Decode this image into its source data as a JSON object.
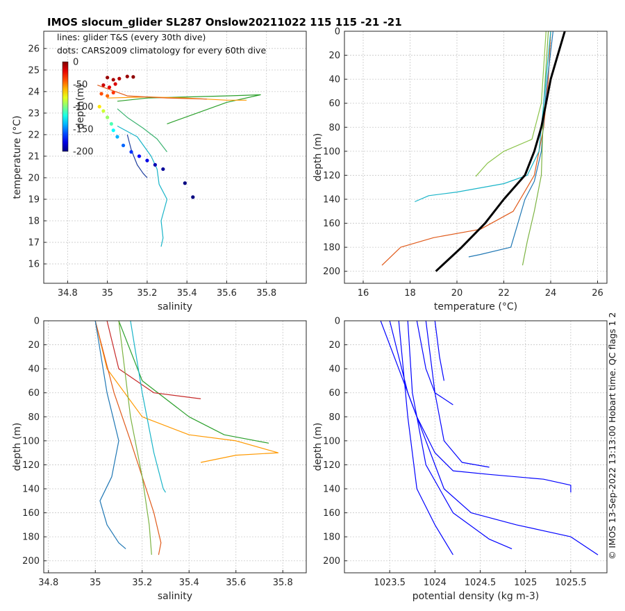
{
  "figure": {
    "title": "IMOS slocum_glider SL287 Onslow20211022 115  115  -21  -21",
    "side_note": "© IMOS 13-Sep-2022 13:13:00 Hobart time. QC flags 1  2"
  },
  "chart_data": [
    {
      "type": "scatter",
      "panel": "ts",
      "xlabel": "salinity",
      "ylabel": "temperature (°C)",
      "xlim": [
        34.68,
        36.0
      ],
      "ylim": [
        15.1,
        26.8
      ],
      "xticks": [
        34.8,
        35,
        35.2,
        35.4,
        35.6,
        35.8
      ],
      "yticks": [
        16,
        17,
        18,
        19,
        20,
        21,
        22,
        23,
        24,
        25,
        26
      ],
      "grid": true,
      "legend_lines": [
        "lines: glider T&S (every 30th dive)",
        "dots: CARS2009 climatology for every 60th dive"
      ],
      "colorbar": {
        "label": "depth(m)",
        "range": [
          -200,
          0
        ],
        "ticks": [
          0,
          -50,
          -100,
          -150,
          -200
        ],
        "tick_labels": [
          "0",
          "-50",
          "-100",
          "-150",
          "-200"
        ],
        "colormap": "jet"
      },
      "climatology_points": [
        {
          "s": 35.0,
          "t": 24.65,
          "depth": -5
        },
        {
          "s": 35.03,
          "t": 24.55,
          "depth": -8
        },
        {
          "s": 35.06,
          "t": 24.6,
          "depth": -10
        },
        {
          "s": 35.1,
          "t": 24.7,
          "depth": -5
        },
        {
          "s": 35.13,
          "t": 24.68,
          "depth": -3
        },
        {
          "s": 34.98,
          "t": 24.3,
          "depth": -15
        },
        {
          "s": 35.01,
          "t": 24.2,
          "depth": -20
        },
        {
          "s": 35.04,
          "t": 24.35,
          "depth": -18
        },
        {
          "s": 34.97,
          "t": 23.9,
          "depth": -40
        },
        {
          "s": 35.0,
          "t": 23.8,
          "depth": -45
        },
        {
          "s": 35.03,
          "t": 23.95,
          "depth": -35
        },
        {
          "s": 34.96,
          "t": 23.3,
          "depth": -70
        },
        {
          "s": 34.98,
          "t": 23.1,
          "depth": -85
        },
        {
          "s": 35.0,
          "t": 22.8,
          "depth": -95
        },
        {
          "s": 35.02,
          "t": 22.5,
          "depth": -110
        },
        {
          "s": 35.03,
          "t": 22.2,
          "depth": -125
        },
        {
          "s": 35.05,
          "t": 21.9,
          "depth": -140
        },
        {
          "s": 35.08,
          "t": 21.5,
          "depth": -155
        },
        {
          "s": 35.12,
          "t": 21.2,
          "depth": -165
        },
        {
          "s": 35.16,
          "t": 21.0,
          "depth": -175
        },
        {
          "s": 35.2,
          "t": 20.8,
          "depth": -180
        },
        {
          "s": 35.24,
          "t": 20.6,
          "depth": -190
        },
        {
          "s": 35.28,
          "t": 20.4,
          "depth": -195
        },
        {
          "s": 35.39,
          "t": 19.75,
          "depth": -200
        },
        {
          "s": 35.43,
          "t": 19.1,
          "depth": -200
        }
      ],
      "glider_lines": [
        {
          "color": "#2ca02c",
          "points": [
            [
              35.05,
              23.55
            ],
            [
              35.2,
              23.7
            ],
            [
              35.4,
              23.75
            ],
            [
              35.6,
              23.8
            ],
            [
              35.77,
              23.85
            ],
            [
              35.6,
              23.5
            ],
            [
              35.45,
              23.0
            ],
            [
              35.3,
              22.5
            ]
          ]
        },
        {
          "color": "#ff9900",
          "points": [
            [
              35.0,
              23.7
            ],
            [
              35.2,
              23.75
            ],
            [
              35.4,
              23.7
            ],
            [
              35.6,
              23.6
            ],
            [
              35.7,
              23.6
            ]
          ]
        },
        {
          "color": "#e05a1a",
          "points": [
            [
              34.95,
              24.3
            ],
            [
              35.1,
              23.8
            ],
            [
              35.3,
              23.7
            ],
            [
              35.5,
              23.65
            ]
          ]
        },
        {
          "color": "#18b4c8",
          "points": [
            [
              35.05,
              22.4
            ],
            [
              35.15,
              21.9
            ],
            [
              35.22,
              21.0
            ],
            [
              35.25,
              20.4
            ],
            [
              35.26,
              19.7
            ],
            [
              35.3,
              19.0
            ],
            [
              35.27,
              18.0
            ],
            [
              35.28,
              17.2
            ],
            [
              35.27,
              16.8
            ]
          ]
        },
        {
          "color": "#1f3f9e",
          "points": [
            [
              35.1,
              22.0
            ],
            [
              35.12,
              21.3
            ],
            [
              35.15,
              20.6
            ],
            [
              35.18,
              20.2
            ],
            [
              35.2,
              20.0
            ]
          ]
        },
        {
          "color": "#3cb371",
          "points": [
            [
              35.05,
              23.2
            ],
            [
              35.1,
              22.8
            ],
            [
              35.18,
              22.3
            ],
            [
              35.25,
              21.8
            ],
            [
              35.3,
              21.2
            ]
          ]
        }
      ]
    },
    {
      "type": "line",
      "panel": "temperature",
      "xlabel": "temperature (°C)",
      "ylabel": "depth (m)",
      "xlim": [
        15.2,
        26.4
      ],
      "ylim": [
        0,
        210
      ],
      "y_reversed": true,
      "xticks": [
        16,
        18,
        20,
        22,
        24,
        26
      ],
      "yticks": [
        0,
        20,
        40,
        60,
        80,
        100,
        120,
        140,
        160,
        180,
        200
      ],
      "grid": true,
      "climatology_profile": [
        [
          24.6,
          0
        ],
        [
          24.3,
          20
        ],
        [
          24.0,
          40
        ],
        [
          23.8,
          60
        ],
        [
          23.6,
          80
        ],
        [
          23.3,
          100
        ],
        [
          22.9,
          120
        ],
        [
          22.0,
          140
        ],
        [
          21.2,
          160
        ],
        [
          20.2,
          180
        ],
        [
          19.1,
          200
        ]
      ],
      "glider_profiles": [
        {
          "color": "#e05a1a",
          "points": [
            [
              24.0,
              0
            ],
            [
              23.9,
              40
            ],
            [
              23.7,
              80
            ],
            [
              23.3,
              120
            ],
            [
              22.4,
              150
            ],
            [
              21.0,
              165
            ],
            [
              19.0,
              172
            ],
            [
              17.6,
              180
            ],
            [
              16.8,
              195
            ]
          ]
        },
        {
          "color": "#1f77b4",
          "points": [
            [
              24.1,
              0
            ],
            [
              23.8,
              50
            ],
            [
              23.6,
              100
            ],
            [
              23.3,
              125
            ],
            [
              22.9,
              140
            ],
            [
              22.6,
              160
            ],
            [
              22.3,
              180
            ],
            [
              21.0,
              186
            ],
            [
              20.5,
              188
            ]
          ]
        },
        {
          "color": "#7cb342",
          "points": [
            [
              23.9,
              0
            ],
            [
              23.7,
              60
            ],
            [
              23.6,
              120
            ],
            [
              23.3,
              150
            ],
            [
              23.0,
              175
            ],
            [
              22.8,
              195
            ]
          ]
        },
        {
          "color": "#18b4c8",
          "points": [
            [
              24.0,
              0
            ],
            [
              23.7,
              60
            ],
            [
              23.5,
              100
            ],
            [
              23.0,
              120
            ],
            [
              22.0,
              127
            ],
            [
              20.0,
              134
            ],
            [
              18.8,
              137
            ],
            [
              18.2,
              142
            ]
          ]
        },
        {
          "color": "#8bc34a",
          "points": [
            [
              23.8,
              0
            ],
            [
              23.6,
              60
            ],
            [
              23.2,
              90
            ],
            [
              22.0,
              100
            ],
            [
              21.3,
              110
            ],
            [
              20.8,
              121
            ]
          ]
        }
      ]
    },
    {
      "type": "line",
      "panel": "salinity",
      "xlabel": "salinity",
      "ylabel": "depth (m)",
      "xlim": [
        34.78,
        35.9
      ],
      "ylim": [
        0,
        210
      ],
      "y_reversed": true,
      "xticks": [
        34.8,
        35,
        35.2,
        35.4,
        35.6,
        35.8
      ],
      "yticks": [
        0,
        20,
        40,
        60,
        80,
        100,
        120,
        140,
        160,
        180,
        200
      ],
      "grid": true,
      "glider_profiles": [
        {
          "color": "#ff9900",
          "points": [
            [
              35.0,
              0
            ],
            [
              35.05,
              40
            ],
            [
              35.2,
              80
            ],
            [
              35.4,
              95
            ],
            [
              35.6,
              100
            ],
            [
              35.78,
              110
            ],
            [
              35.6,
              112
            ],
            [
              35.45,
              118
            ]
          ]
        },
        {
          "color": "#2ca02c",
          "points": [
            [
              35.1,
              0
            ],
            [
              35.2,
              50
            ],
            [
              35.4,
              80
            ],
            [
              35.55,
              95
            ],
            [
              35.74,
              102
            ]
          ]
        },
        {
          "color": "#c62828",
          "points": [
            [
              35.05,
              0
            ],
            [
              35.1,
              40
            ],
            [
              35.25,
              60
            ],
            [
              35.45,
              65
            ]
          ]
        },
        {
          "color": "#e05a1a",
          "points": [
            [
              35.0,
              0
            ],
            [
              35.08,
              60
            ],
            [
              35.15,
              100
            ],
            [
              35.2,
              130
            ],
            [
              35.25,
              160
            ],
            [
              35.28,
              185
            ],
            [
              35.27,
              195
            ]
          ]
        },
        {
          "color": "#1f77b4",
          "points": [
            [
              35.0,
              0
            ],
            [
              35.05,
              60
            ],
            [
              35.1,
              100
            ],
            [
              35.07,
              130
            ],
            [
              35.02,
              150
            ],
            [
              35.05,
              170
            ],
            [
              35.1,
              185
            ],
            [
              35.13,
              190
            ]
          ]
        },
        {
          "color": "#7cb342",
          "points": [
            [
              35.1,
              0
            ],
            [
              35.15,
              80
            ],
            [
              35.2,
              130
            ],
            [
              35.23,
              170
            ],
            [
              35.24,
              195
            ]
          ]
        },
        {
          "color": "#18b4c8",
          "points": [
            [
              35.15,
              0
            ],
            [
              35.2,
              60
            ],
            [
              35.25,
              110
            ],
            [
              35.29,
              140
            ],
            [
              35.3,
              143
            ]
          ]
        }
      ]
    },
    {
      "type": "line",
      "panel": "density",
      "xlabel": "potential density (kg m-3)",
      "ylabel": "depth (m)",
      "xlim": [
        1023.0,
        1025.9
      ],
      "ylim": [
        0,
        210
      ],
      "y_reversed": true,
      "xticks": [
        1023.5,
        1024,
        1024.5,
        1025,
        1025.5
      ],
      "tick_labels": [
        "1023.5",
        "1024",
        "1024.5",
        "1025",
        "1025.5"
      ],
      "yticks": [
        0,
        20,
        40,
        60,
        80,
        100,
        120,
        140,
        160,
        180,
        200
      ],
      "grid": true,
      "line_color": "#0000ff",
      "profiles": [
        [
          [
            1023.4,
            0
          ],
          [
            1023.6,
            40
          ],
          [
            1023.8,
            80
          ],
          [
            1024.0,
            110
          ],
          [
            1024.2,
            125
          ],
          [
            1024.6,
            128
          ],
          [
            1025.2,
            132
          ],
          [
            1025.5,
            137
          ],
          [
            1025.5,
            143
          ]
        ],
        [
          [
            1023.5,
            0
          ],
          [
            1023.7,
            60
          ],
          [
            1023.9,
            100
          ],
          [
            1024.1,
            140
          ],
          [
            1024.4,
            160
          ],
          [
            1024.9,
            170
          ],
          [
            1025.5,
            180
          ],
          [
            1025.8,
            195
          ]
        ],
        [
          [
            1023.6,
            0
          ],
          [
            1023.7,
            80
          ],
          [
            1023.8,
            140
          ],
          [
            1024.0,
            170
          ],
          [
            1024.2,
            195
          ]
        ],
        [
          [
            1023.7,
            0
          ],
          [
            1023.75,
            60
          ],
          [
            1023.9,
            120
          ],
          [
            1024.2,
            160
          ],
          [
            1024.6,
            182
          ],
          [
            1024.85,
            190
          ]
        ],
        [
          [
            1023.8,
            0
          ],
          [
            1023.9,
            40
          ],
          [
            1024.0,
            60
          ],
          [
            1024.2,
            70
          ]
        ],
        [
          [
            1023.9,
            0
          ],
          [
            1024.0,
            60
          ],
          [
            1024.1,
            100
          ],
          [
            1024.3,
            118
          ],
          [
            1024.6,
            122
          ]
        ],
        [
          [
            1024.0,
            0
          ],
          [
            1024.05,
            30
          ],
          [
            1024.1,
            50
          ]
        ]
      ]
    }
  ]
}
